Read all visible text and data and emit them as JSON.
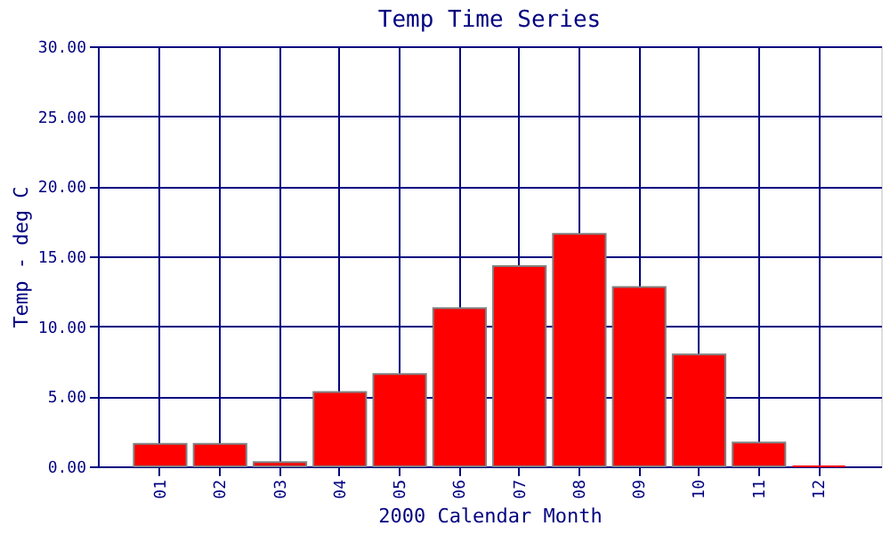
{
  "chart_data": {
    "type": "bar",
    "title": "Temp Time Series",
    "xlabel": "2000 Calendar Month",
    "ylabel": "Temp - deg C",
    "categories": [
      "01",
      "02",
      "03",
      "04",
      "05",
      "06",
      "07",
      "08",
      "09",
      "10",
      "11",
      "12"
    ],
    "values": [
      1.6,
      1.6,
      0.3,
      5.3,
      6.6,
      11.3,
      14.3,
      16.6,
      12.8,
      8.0,
      1.7,
      0
    ],
    "color": "#ff0000",
    "ylim": [
      0,
      30
    ],
    "yticks": [
      {
        "value": 0,
        "label": "0.00"
      },
      {
        "value": 5,
        "label": "5.00"
      },
      {
        "value": 10,
        "label": "10.00"
      },
      {
        "value": 15,
        "label": "15.00"
      },
      {
        "value": 20,
        "label": "20.00"
      },
      {
        "value": 25,
        "label": "25.00"
      },
      {
        "value": 30,
        "label": "30.00"
      }
    ],
    "grid": true
  }
}
